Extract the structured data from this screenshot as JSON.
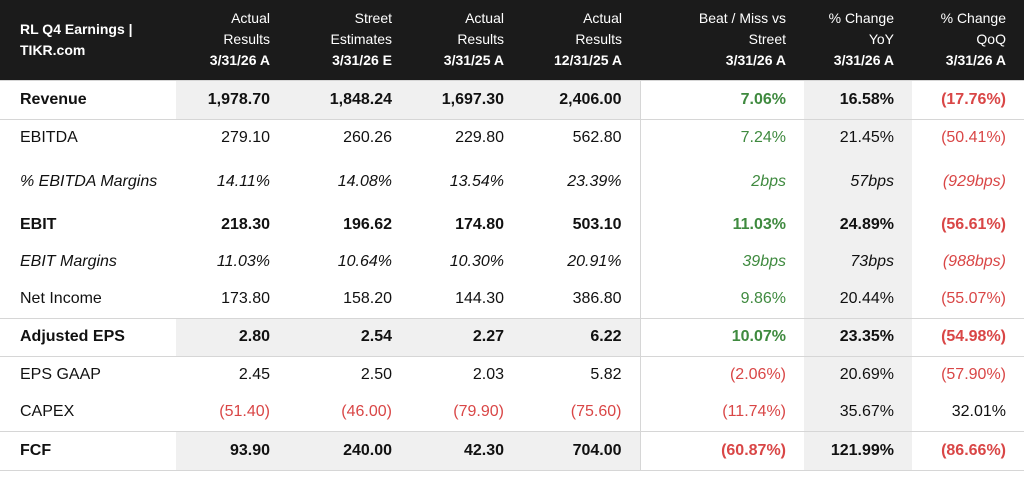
{
  "header": {
    "title_line1": "RL Q4 Earnings |",
    "title_line2": "TIKR.com",
    "columns": [
      {
        "line1": "Actual",
        "line2": "Results",
        "date": "3/31/26 A"
      },
      {
        "line1": "Street",
        "line2": "Estimates",
        "date": "3/31/26 E"
      },
      {
        "line1": "Actual",
        "line2": "Results",
        "date": "3/31/25 A"
      },
      {
        "line1": "Actual",
        "line2": "Results",
        "date": "12/31/25 A"
      },
      {
        "line1": "Beat / Miss vs",
        "line2": "Street",
        "date": "3/31/26 A"
      },
      {
        "line1": "% Change",
        "line2": "YoY",
        "date": "3/31/26 A"
      },
      {
        "line1": "% Change",
        "line2": "QoQ",
        "date": "3/31/26 A"
      }
    ]
  },
  "rows": [
    {
      "label": "Revenue",
      "values": [
        "1,978.70",
        "1,848.24",
        "1,697.30",
        "2,406.00",
        "7.06%",
        "16.58%",
        "(17.76%)"
      ]
    },
    {
      "label": "EBITDA",
      "values": [
        "279.10",
        "260.26",
        "229.80",
        "562.80",
        "7.24%",
        "21.45%",
        "(50.41%)"
      ]
    },
    {
      "label": "% EBITDA Margins",
      "values": [
        "14.11%",
        "14.08%",
        "13.54%",
        "23.39%",
        "2bps",
        "57bps",
        "(929bps)"
      ]
    },
    {
      "label": "EBIT",
      "values": [
        "218.30",
        "196.62",
        "174.80",
        "503.10",
        "11.03%",
        "24.89%",
        "(56.61%)"
      ]
    },
    {
      "label": "EBIT Margins",
      "values": [
        "11.03%",
        "10.64%",
        "10.30%",
        "20.91%",
        "39bps",
        "73bps",
        "(988bps)"
      ]
    },
    {
      "label": "Net Income",
      "values": [
        "173.80",
        "158.20",
        "144.30",
        "386.80",
        "9.86%",
        "20.44%",
        "(55.07%)"
      ]
    },
    {
      "label": "Adjusted EPS",
      "values": [
        "2.80",
        "2.54",
        "2.27",
        "6.22",
        "10.07%",
        "23.35%",
        "(54.98%)"
      ]
    },
    {
      "label": "EPS GAAP",
      "values": [
        "2.45",
        "2.50",
        "2.03",
        "5.82",
        "(2.06%)",
        "20.69%",
        "(57.90%)"
      ]
    },
    {
      "label": "CAPEX",
      "values": [
        "(51.40)",
        "(46.00)",
        "(79.90)",
        "(75.60)",
        "(11.74%)",
        "35.67%",
        "32.01%"
      ]
    },
    {
      "label": "FCF",
      "values": [
        "93.90",
        "240.00",
        "42.30",
        "704.00",
        "(60.87%)",
        "121.99%",
        "(86.66%)"
      ]
    }
  ],
  "colors": {
    "header_bg": "#1b1b1b",
    "positive": "#3f8a3f",
    "negative": "#d94646",
    "shade": "#f0f0f0"
  }
}
